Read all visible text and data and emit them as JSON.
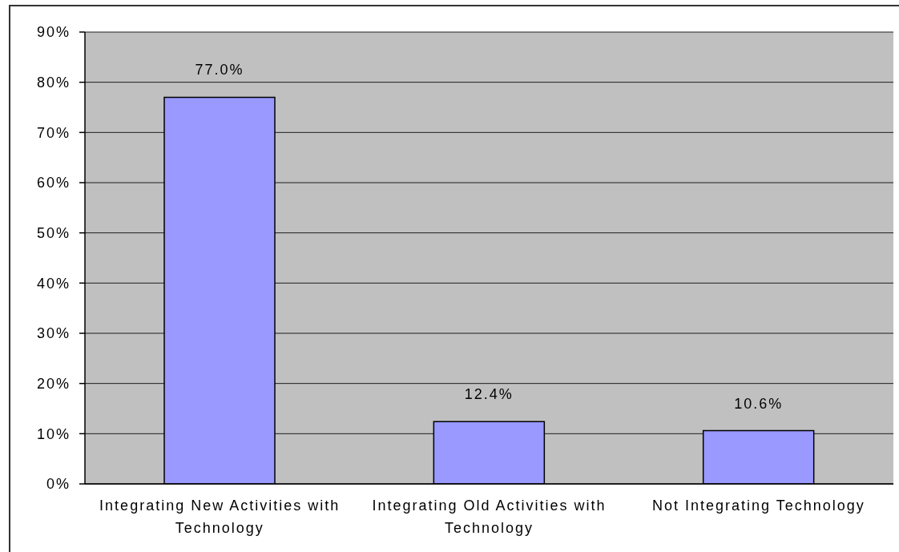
{
  "chart_data": {
    "type": "bar",
    "categories": [
      "Integrating New Activities with Technology",
      "Integrating Old Activities with Technology",
      "Not Integrating Technology"
    ],
    "values": [
      77.0,
      12.4,
      10.6
    ],
    "color": "#9999ff",
    "value_labels": [
      "77.0%",
      "12.4%",
      "10.6%"
    ],
    "ylim": [
      0,
      90
    ],
    "yticks": [
      {
        "value": 0,
        "label": "0%"
      },
      {
        "value": 10,
        "label": "10%"
      },
      {
        "value": 20,
        "label": "20%"
      },
      {
        "value": 30,
        "label": "30%"
      },
      {
        "value": 40,
        "label": "40%"
      },
      {
        "value": 50,
        "label": "50%"
      },
      {
        "value": 60,
        "label": "60%"
      },
      {
        "value": 70,
        "label": "70%"
      },
      {
        "value": 80,
        "label": "80%"
      },
      {
        "value": 90,
        "label": "90%"
      }
    ],
    "grid": "y"
  }
}
